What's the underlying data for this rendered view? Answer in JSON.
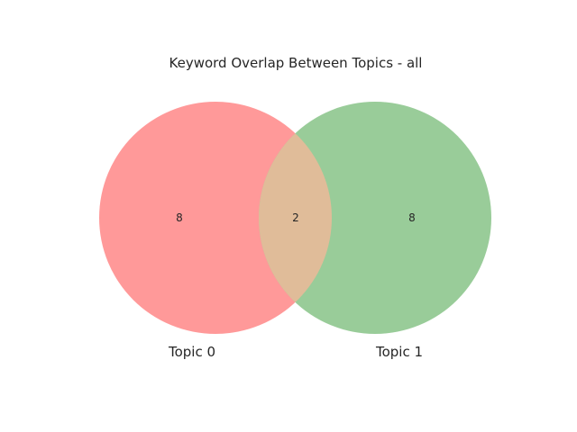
{
  "title": "Keyword Overlap Between Topics - all",
  "sets": [
    {
      "label": "Topic 0",
      "only_count": "8",
      "color": "#ff9999"
    },
    {
      "label": "Topic 1",
      "only_count": "8",
      "color": "#99cc99"
    }
  ],
  "intersection": {
    "count": "2",
    "color": "#e0bc99"
  },
  "chart_data": {
    "type": "venn2",
    "title": "Keyword Overlap Between Topics - all",
    "set_labels": [
      "Topic 0",
      "Topic 1"
    ],
    "subsets": {
      "10": 8,
      "01": 8,
      "11": 2
    }
  }
}
